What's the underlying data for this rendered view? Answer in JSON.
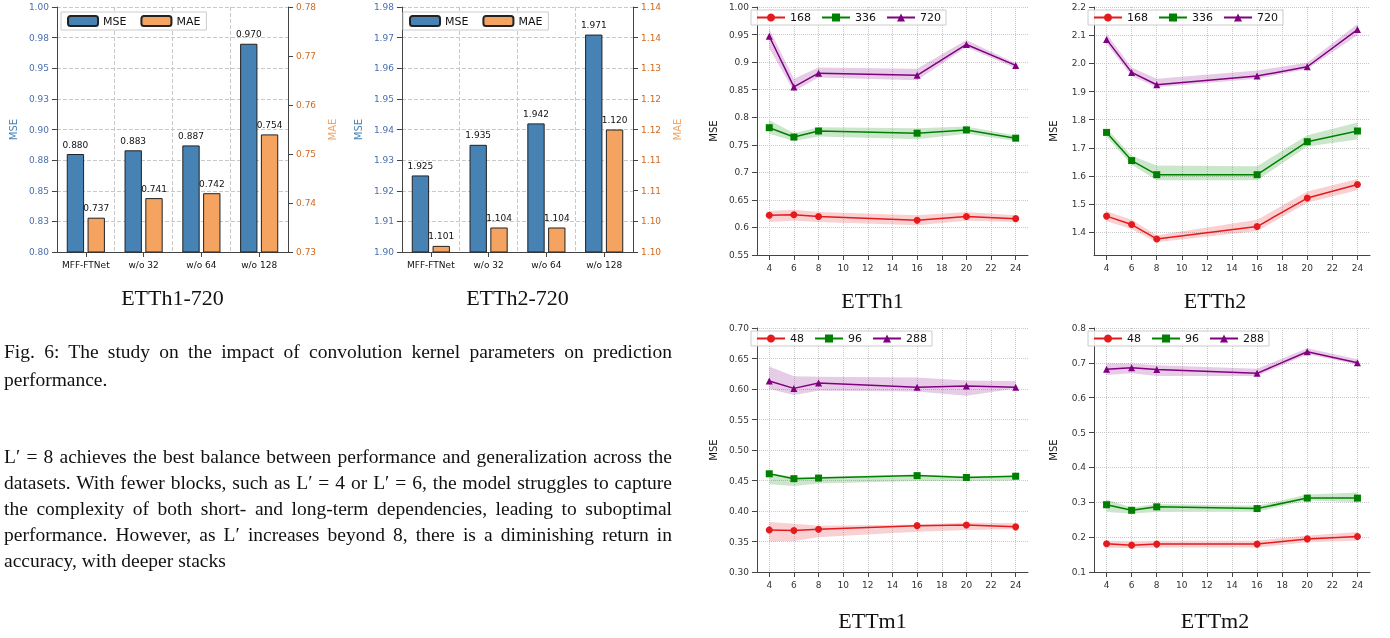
{
  "chart_data": [
    {
      "type": "bar",
      "title": "ETTh1-720",
      "ylabel": "MSE",
      "y2label": "MAE",
      "categories": [
        "MFF-FTNet",
        "w/o 32",
        "w/o 64",
        "w/o 128"
      ],
      "series": [
        {
          "name": "MSE",
          "color": "#4682b4",
          "values": [
            0.88,
            0.883,
            0.887,
            0.97
          ],
          "value_labels": [
            "0.880",
            "0.883",
            "0.887",
            "0.970"
          ]
        },
        {
          "name": "MAE",
          "color": "#f4a460",
          "axis": "y2",
          "values": [
            0.737,
            0.741,
            0.742,
            0.754
          ],
          "value_labels": [
            "0.737",
            "0.741",
            "0.742",
            "0.754"
          ]
        }
      ],
      "ylim": [
        0.8,
        1.0
      ],
      "yticks": [
        {
          "value": 0.8,
          "label": "0.80"
        },
        {
          "value": 0.825,
          "label": "0.83"
        },
        {
          "value": 0.85,
          "label": "0.85"
        },
        {
          "value": 0.875,
          "label": "0.88"
        },
        {
          "value": 0.9,
          "label": "0.90"
        },
        {
          "value": 0.925,
          "label": "0.93"
        },
        {
          "value": 0.95,
          "label": "0.95"
        },
        {
          "value": 0.975,
          "label": "0.98"
        },
        {
          "value": 1.0,
          "label": "1.00"
        }
      ],
      "y2lim": [
        0.73,
        0.78
      ],
      "y2ticks": [
        0.73,
        0.74,
        0.75,
        0.76,
        0.77,
        0.78
      ],
      "grid": true,
      "legend": "top left"
    },
    {
      "type": "bar",
      "title": "ETTh2-720",
      "ylabel": "MSE",
      "y2label": "MAE",
      "categories": [
        "MFF-FTNet",
        "w/o 32",
        "w/o 64",
        "w/o 128"
      ],
      "series": [
        {
          "name": "MSE",
          "color": "#4682b4",
          "values": [
            1.925,
            1.935,
            1.942,
            1.971
          ],
          "value_labels": [
            "1.925",
            "1.935",
            "1.942",
            "1.971"
          ]
        },
        {
          "name": "MAE",
          "color": "#f4a460",
          "axis": "y2",
          "values": [
            1.101,
            1.104,
            1.104,
            1.12
          ],
          "value_labels": [
            "1.101",
            "1.104",
            "1.104",
            "1.120"
          ]
        }
      ],
      "ylim": [
        1.9,
        1.98
      ],
      "yticks": [
        {
          "value": 1.9,
          "label": "1.90"
        },
        1.91,
        1.92,
        1.93,
        1.94,
        1.95,
        1.96,
        1.97,
        1.98
      ],
      "y2lim": [
        1.1,
        1.14
      ],
      "y2ticks": [
        {
          "value": 1.1,
          "label": "1.10"
        },
        {
          "value": 1.105,
          "label": "1.10"
        },
        1.11,
        {
          "value": 1.115,
          "label": "1.11"
        },
        1.12,
        {
          "value": 1.125,
          "label": "1.12"
        },
        1.13,
        {
          "value": 1.135,
          "label": "1.14"
        },
        1.14
      ],
      "grid": true,
      "legend": "top left"
    },
    {
      "type": "line",
      "title": "ETTh1",
      "ylabel": "MSE",
      "x": [
        4,
        6,
        8,
        16,
        20,
        24
      ],
      "series": [
        {
          "name": "168",
          "color": "#e41a1c",
          "marker": "circle",
          "values": [
            0.622,
            0.623,
            0.62,
            0.613,
            0.62,
            0.616
          ],
          "lower": [
            0.61,
            0.612,
            0.61,
            0.604,
            0.612,
            0.61
          ],
          "upper": [
            0.63,
            0.632,
            0.628,
            0.622,
            0.628,
            0.622
          ]
        },
        {
          "name": "336",
          "color": "#008000",
          "marker": "square",
          "values": [
            0.781,
            0.764,
            0.775,
            0.771,
            0.777,
            0.762
          ],
          "lower": [
            0.77,
            0.757,
            0.765,
            0.76,
            0.77,
            0.757
          ],
          "upper": [
            0.795,
            0.771,
            0.782,
            0.78,
            0.783,
            0.767
          ]
        },
        {
          "name": "720",
          "color": "#800080",
          "marker": "triangle",
          "values": [
            0.947,
            0.855,
            0.88,
            0.876,
            0.932,
            0.894
          ],
          "lower": [
            0.925,
            0.847,
            0.872,
            0.867,
            0.927,
            0.889
          ],
          "upper": [
            0.96,
            0.87,
            0.89,
            0.888,
            0.94,
            0.898
          ]
        }
      ],
      "xlim": [
        3,
        25
      ],
      "xticks": [
        4,
        6,
        8,
        10,
        12,
        14,
        16,
        18,
        20,
        22,
        24
      ],
      "ylim": [
        0.55,
        1.0
      ],
      "yticks": [
        0.55,
        0.6,
        0.65,
        0.7,
        0.75,
        0.8,
        0.85,
        0.9,
        0.95,
        {
          "value": 1.0,
          "label": "1.00"
        }
      ],
      "grid": true,
      "legend": "top left",
      "line_style": "solid"
    },
    {
      "type": "line",
      "title": "ETTh2",
      "ylabel": "MSE",
      "x": [
        4,
        6,
        8,
        16,
        20,
        24
      ],
      "series": [
        {
          "name": "168",
          "color": "#e41a1c",
          "marker": "circle",
          "values": [
            1.458,
            1.428,
            1.377,
            1.421,
            1.522,
            1.57
          ],
          "lower": [
            1.44,
            1.412,
            1.365,
            1.405,
            1.505,
            1.55
          ],
          "upper": [
            1.475,
            1.445,
            1.39,
            1.445,
            1.545,
            1.59
          ]
        },
        {
          "name": "336",
          "color": "#008000",
          "marker": "square",
          "values": [
            1.755,
            1.655,
            1.605,
            1.605,
            1.722,
            1.76
          ],
          "lower": [
            1.74,
            1.64,
            1.585,
            1.585,
            1.705,
            1.73
          ],
          "upper": [
            1.77,
            1.672,
            1.638,
            1.635,
            1.745,
            1.79
          ]
        },
        {
          "name": "720",
          "color": "#800080",
          "marker": "triangle",
          "values": [
            2.085,
            1.968,
            1.924,
            1.955,
            1.988,
            2.12
          ],
          "lower": [
            2.07,
            1.955,
            1.915,
            1.945,
            1.98,
            2.1
          ],
          "upper": [
            2.105,
            1.985,
            1.945,
            1.975,
            2.002,
            2.14
          ]
        }
      ],
      "xlim": [
        3,
        25
      ],
      "xticks": [
        4,
        6,
        8,
        10,
        12,
        14,
        16,
        18,
        20,
        22,
        24
      ],
      "ylim": [
        1.32,
        2.2
      ],
      "yticks": [
        1.4,
        1.5,
        1.6,
        1.7,
        1.8,
        1.9,
        {
          "value": 2.0,
          "label": "2.0"
        },
        2.1,
        2.2
      ],
      "grid": true,
      "legend": "top left",
      "line_style": "solid"
    },
    {
      "type": "line",
      "title": "ETTm1",
      "ylabel": "MSE",
      "x": [
        4,
        6,
        8,
        16,
        20,
        24
      ],
      "series": [
        {
          "name": "48",
          "color": "#e41a1c",
          "marker": "circle",
          "values": [
            0.369,
            0.368,
            0.37,
            0.376,
            0.377,
            0.374
          ],
          "lower": [
            0.35,
            0.351,
            0.357,
            0.366,
            0.369,
            0.37
          ],
          "upper": [
            0.382,
            0.379,
            0.376,
            0.378,
            0.381,
            0.38
          ]
        },
        {
          "name": "96",
          "color": "#008000",
          "marker": "square",
          "values": [
            0.461,
            0.453,
            0.454,
            0.458,
            0.455,
            0.457
          ],
          "lower": [
            0.444,
            0.441,
            0.445,
            0.449,
            0.449,
            0.45
          ],
          "upper": [
            0.462,
            0.456,
            0.456,
            0.46,
            0.457,
            0.458
          ]
        },
        {
          "name": "288",
          "color": "#800080",
          "marker": "triangle",
          "values": [
            0.613,
            0.601,
            0.61,
            0.603,
            0.605,
            0.603
          ],
          "lower": [
            0.6,
            0.59,
            0.597,
            0.596,
            0.589,
            0.601
          ],
          "upper": [
            0.637,
            0.621,
            0.62,
            0.619,
            0.614,
            0.613
          ]
        }
      ],
      "xlim": [
        3,
        25
      ],
      "xticks": [
        4,
        6,
        8,
        10,
        12,
        14,
        16,
        18,
        20,
        22,
        24
      ],
      "ylim": [
        0.3,
        0.7
      ],
      "yticks": [
        {
          "value": 0.3,
          "label": "0.30"
        },
        0.35,
        {
          "value": 0.4,
          "label": "0.40"
        },
        0.45,
        {
          "value": 0.5,
          "label": "0.50"
        },
        0.55,
        {
          "value": 0.6,
          "label": "0.60"
        },
        0.65,
        {
          "value": 0.7,
          "label": "0.70"
        }
      ],
      "grid": true,
      "legend": "top left",
      "line_style": "solid"
    },
    {
      "type": "line",
      "title": "ETTm2",
      "ylabel": "MSE",
      "x": [
        4,
        6,
        8,
        16,
        20,
        24
      ],
      "series": [
        {
          "name": "48",
          "color": "#e41a1c",
          "marker": "circle",
          "values": [
            0.181,
            0.177,
            0.18,
            0.18,
            0.195,
            0.202
          ],
          "lower": [
            0.17,
            0.168,
            0.17,
            0.17,
            0.185,
            0.19
          ],
          "upper": [
            0.19,
            0.188,
            0.19,
            0.19,
            0.205,
            0.215
          ]
        },
        {
          "name": "96",
          "color": "#008000",
          "marker": "square",
          "values": [
            0.293,
            0.277,
            0.287,
            0.282,
            0.312,
            0.312
          ],
          "lower": [
            0.272,
            0.268,
            0.272,
            0.273,
            0.305,
            0.3
          ],
          "upper": [
            0.308,
            0.285,
            0.295,
            0.29,
            0.322,
            0.328
          ]
        },
        {
          "name": "288",
          "color": "#800080",
          "marker": "triangle",
          "values": [
            0.682,
            0.686,
            0.681,
            0.67,
            0.732,
            0.7
          ],
          "lower": [
            0.665,
            0.67,
            0.662,
            0.662,
            0.725,
            0.695
          ],
          "upper": [
            0.698,
            0.698,
            0.693,
            0.683,
            0.742,
            0.71
          ]
        }
      ],
      "xlim": [
        3,
        25
      ],
      "xticks": [
        4,
        6,
        8,
        10,
        12,
        14,
        16,
        18,
        20,
        22,
        24
      ],
      "ylim": [
        0.1,
        0.8
      ],
      "yticks": [
        0.1,
        0.2,
        0.3,
        0.4,
        0.5,
        0.6,
        0.7,
        0.8
      ],
      "grid": true,
      "legend": "top left",
      "line_style": "solid"
    },
    {
      "type": "other",
      "annotations": [
        "Fig. 6: The study on the impact of convolution kernel parameters on prediction performance.",
        "L′ = 8 achieves the best balance between performance and generalization across the datasets. With fewer blocks, such as L′ = 4 or L′ = 6, the model struggles to capture the complexity of both short- and long-term dependencies, leading to suboptimal performance. However, as L′ increases beyond 8, there is a diminishing return in accuracy, with deeper stacks"
      ]
    }
  ]
}
